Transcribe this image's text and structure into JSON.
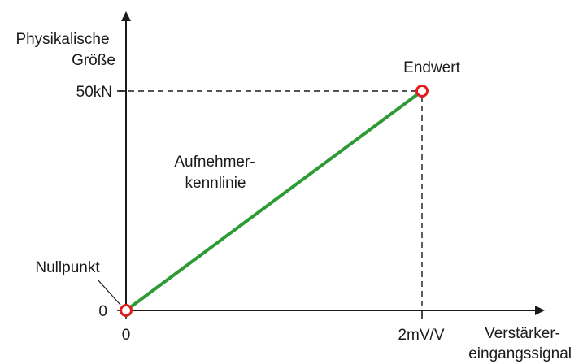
{
  "y_axis": {
    "label_line1": "Physikalische",
    "label_line2": "Größe",
    "tick_zero": "0",
    "tick_max": "50kN"
  },
  "x_axis": {
    "label_line1": "Verstärker-",
    "label_line2": "eingangssignal",
    "tick_zero": "0",
    "tick_max": "2mV/V"
  },
  "curve": {
    "label_line1": "Aufnehmer-",
    "label_line2": "kennlinie"
  },
  "points": {
    "zero_label": "Nullpunkt",
    "end_label": "Endwert"
  },
  "colors": {
    "curve": "#2e9a36",
    "marker": "#e11d1d",
    "axis": "#1a1a1a"
  },
  "chart_data": {
    "type": "line",
    "x": [
      0,
      2
    ],
    "y": [
      0,
      50
    ],
    "xlim": [
      0,
      2
    ],
    "ylim": [
      0,
      50
    ]
  }
}
